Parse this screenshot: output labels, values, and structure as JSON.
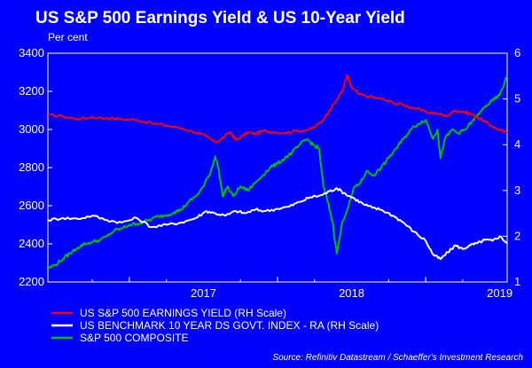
{
  "colors": {
    "background": "#0000ff",
    "earnings_yield": "#ff0000",
    "ten_year": "#ffffff",
    "sp500": "#00c000",
    "axis": "#ffffff"
  },
  "chart_data": {
    "type": "line",
    "title": "US S&P 500 Earnings Yield & US 10-Year Yield",
    "unit_label": "Per cent",
    "source": "Source: Refinitiv Datastream / Schaeffer's Investment Research",
    "grid": false,
    "legend_position": "bottom-left",
    "x_range": [
      2016.45,
      2019.55
    ],
    "x_ticks": [
      {
        "value": 2017,
        "label": "2017"
      },
      {
        "value": 2018,
        "label": "2018"
      },
      {
        "value": 2019,
        "label": "2019"
      }
    ],
    "y_left": {
      "range": [
        2200,
        3400
      ],
      "ticks": [
        2200,
        2400,
        2600,
        2800,
        3000,
        3200,
        3400
      ]
    },
    "y_right": {
      "range": [
        1,
        6
      ],
      "ticks": [
        1,
        2,
        3,
        4,
        5,
        6
      ]
    },
    "series": [
      {
        "name": "US S&P 500 EARNINGS YIELD (RH Scale)",
        "axis": "right",
        "color_key": "earnings_yield",
        "points": [
          [
            2016.45,
            4.65
          ],
          [
            2016.55,
            4.62
          ],
          [
            2016.65,
            4.56
          ],
          [
            2016.75,
            4.6
          ],
          [
            2016.85,
            4.58
          ],
          [
            2016.95,
            4.56
          ],
          [
            2017.05,
            4.54
          ],
          [
            2017.15,
            4.47
          ],
          [
            2017.25,
            4.42
          ],
          [
            2017.35,
            4.36
          ],
          [
            2017.45,
            4.27
          ],
          [
            2017.52,
            4.18
          ],
          [
            2017.58,
            4.05
          ],
          [
            2017.62,
            4.12
          ],
          [
            2017.68,
            4.28
          ],
          [
            2017.72,
            4.1
          ],
          [
            2017.76,
            4.18
          ],
          [
            2017.8,
            4.27
          ],
          [
            2017.85,
            4.23
          ],
          [
            2017.9,
            4.3
          ],
          [
            2017.97,
            4.28
          ],
          [
            2018.05,
            4.26
          ],
          [
            2018.12,
            4.3
          ],
          [
            2018.2,
            4.32
          ],
          [
            2018.25,
            4.38
          ],
          [
            2018.3,
            4.52
          ],
          [
            2018.35,
            4.75
          ],
          [
            2018.4,
            4.98
          ],
          [
            2018.44,
            5.2
          ],
          [
            2018.47,
            5.52
          ],
          [
            2018.5,
            5.25
          ],
          [
            2018.55,
            5.1
          ],
          [
            2018.62,
            5.05
          ],
          [
            2018.7,
            5.0
          ],
          [
            2018.78,
            4.92
          ],
          [
            2018.85,
            4.87
          ],
          [
            2018.92,
            4.8
          ],
          [
            2019.0,
            4.72
          ],
          [
            2019.08,
            4.68
          ],
          [
            2019.14,
            4.62
          ],
          [
            2019.2,
            4.75
          ],
          [
            2019.25,
            4.72
          ],
          [
            2019.3,
            4.68
          ],
          [
            2019.35,
            4.6
          ],
          [
            2019.4,
            4.5
          ],
          [
            2019.45,
            4.4
          ],
          [
            2019.5,
            4.32
          ],
          [
            2019.55,
            4.26
          ]
        ]
      },
      {
        "name": "US BENCHMARK 10 YEAR DS GOVT. INDEX - RA (RH Scale)",
        "axis": "right",
        "color_key": "ten_year",
        "points": [
          [
            2016.45,
            2.35
          ],
          [
            2016.55,
            2.4
          ],
          [
            2016.65,
            2.38
          ],
          [
            2016.75,
            2.45
          ],
          [
            2016.85,
            2.35
          ],
          [
            2016.95,
            2.3
          ],
          [
            2017.05,
            2.4
          ],
          [
            2017.15,
            2.2
          ],
          [
            2017.25,
            2.25
          ],
          [
            2017.35,
            2.3
          ],
          [
            2017.45,
            2.4
          ],
          [
            2017.52,
            2.55
          ],
          [
            2017.58,
            2.5
          ],
          [
            2017.65,
            2.45
          ],
          [
            2017.72,
            2.55
          ],
          [
            2017.78,
            2.5
          ],
          [
            2017.85,
            2.58
          ],
          [
            2017.92,
            2.55
          ],
          [
            2018.0,
            2.6
          ],
          [
            2018.08,
            2.65
          ],
          [
            2018.15,
            2.75
          ],
          [
            2018.22,
            2.85
          ],
          [
            2018.3,
            2.9
          ],
          [
            2018.35,
            2.98
          ],
          [
            2018.4,
            3.05
          ],
          [
            2018.46,
            2.92
          ],
          [
            2018.52,
            2.82
          ],
          [
            2018.58,
            2.7
          ],
          [
            2018.64,
            2.62
          ],
          [
            2018.7,
            2.58
          ],
          [
            2018.78,
            2.45
          ],
          [
            2018.85,
            2.3
          ],
          [
            2018.92,
            2.1
          ],
          [
            2019.0,
            1.9
          ],
          [
            2019.05,
            1.6
          ],
          [
            2019.1,
            1.5
          ],
          [
            2019.15,
            1.65
          ],
          [
            2019.2,
            1.8
          ],
          [
            2019.25,
            1.72
          ],
          [
            2019.3,
            1.8
          ],
          [
            2019.35,
            1.85
          ],
          [
            2019.4,
            1.92
          ],
          [
            2019.45,
            1.9
          ],
          [
            2019.5,
            2.0
          ],
          [
            2019.55,
            1.85
          ]
        ]
      },
      {
        "name": "S&P 500 COMPOSITE",
        "axis": "left",
        "color_key": "sp500",
        "points": [
          [
            2016.45,
            2270
          ],
          [
            2016.5,
            2290
          ],
          [
            2016.55,
            2320
          ],
          [
            2016.6,
            2350
          ],
          [
            2016.65,
            2380
          ],
          [
            2016.7,
            2400
          ],
          [
            2016.75,
            2410
          ],
          [
            2016.8,
            2420
          ],
          [
            2016.85,
            2440
          ],
          [
            2016.9,
            2470
          ],
          [
            2016.95,
            2480
          ],
          [
            2017.0,
            2500
          ],
          [
            2017.05,
            2505
          ],
          [
            2017.1,
            2515
          ],
          [
            2017.15,
            2530
          ],
          [
            2017.2,
            2545
          ],
          [
            2017.25,
            2550
          ],
          [
            2017.3,
            2565
          ],
          [
            2017.35,
            2580
          ],
          [
            2017.4,
            2620
          ],
          [
            2017.45,
            2650
          ],
          [
            2017.5,
            2700
          ],
          [
            2017.55,
            2780
          ],
          [
            2017.58,
            2860
          ],
          [
            2017.6,
            2800
          ],
          [
            2017.63,
            2650
          ],
          [
            2017.66,
            2700
          ],
          [
            2017.7,
            2650
          ],
          [
            2017.75,
            2700
          ],
          [
            2017.8,
            2680
          ],
          [
            2017.85,
            2720
          ],
          [
            2017.9,
            2760
          ],
          [
            2017.95,
            2800
          ],
          [
            2018.0,
            2820
          ],
          [
            2018.05,
            2850
          ],
          [
            2018.1,
            2880
          ],
          [
            2018.15,
            2920
          ],
          [
            2018.2,
            2950
          ],
          [
            2018.24,
            2920
          ],
          [
            2018.28,
            2900
          ],
          [
            2018.31,
            2700
          ],
          [
            2018.34,
            2620
          ],
          [
            2018.37,
            2520
          ],
          [
            2018.4,
            2350
          ],
          [
            2018.44,
            2520
          ],
          [
            2018.48,
            2600
          ],
          [
            2018.52,
            2700
          ],
          [
            2018.56,
            2720
          ],
          [
            2018.6,
            2780
          ],
          [
            2018.65,
            2760
          ],
          [
            2018.7,
            2800
          ],
          [
            2018.75,
            2850
          ],
          [
            2018.8,
            2900
          ],
          [
            2018.85,
            2950
          ],
          [
            2018.9,
            3000
          ],
          [
            2018.95,
            3030
          ],
          [
            2019.0,
            3050
          ],
          [
            2019.05,
            2950
          ],
          [
            2019.08,
            3000
          ],
          [
            2019.1,
            2850
          ],
          [
            2019.13,
            2950
          ],
          [
            2019.18,
            3000
          ],
          [
            2019.22,
            2980
          ],
          [
            2019.27,
            3000
          ],
          [
            2019.32,
            3050
          ],
          [
            2019.36,
            3080
          ],
          [
            2019.4,
            3120
          ],
          [
            2019.45,
            3150
          ],
          [
            2019.5,
            3180
          ],
          [
            2019.55,
            3280
          ]
        ]
      }
    ]
  }
}
